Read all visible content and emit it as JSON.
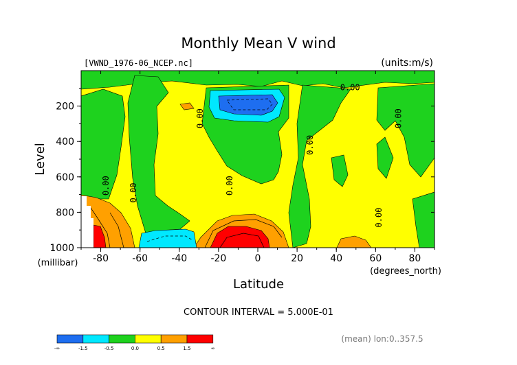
{
  "chart_data": {
    "type": "heatmap",
    "title": "Monthly Mean V wind",
    "file_label": "[VWND_1976-06_NCEP.nc]",
    "units_label": "(units:m/s)",
    "xlabel": "Latitude",
    "x_units": "(degrees_north)",
    "ylabel": "Level",
    "y_units": "(millibar)",
    "xlim": [
      -90,
      90
    ],
    "ylim": [
      1000,
      0
    ],
    "x_ticks": [
      -80,
      -60,
      -40,
      -20,
      0,
      20,
      40,
      60,
      80
    ],
    "y_ticks": [
      200,
      400,
      600,
      800,
      1000
    ],
    "contour_labels": [
      "0.00"
    ],
    "contour_interval_text": "CONTOUR INTERVAL = 5.000E-01",
    "footer_text": "(mean) lon:0..357.5",
    "colorbar": {
      "colors": [
        "#1e6ef0",
        "#00e8ff",
        "#1ed21e",
        "#ffff00",
        "#ffa000",
        "#ff0000"
      ],
      "tick_labels": [
        "-∞",
        "-1.5",
        "-0.5",
        "0.0",
        "0.5",
        "1.5",
        "∞"
      ]
    },
    "regions": [
      {
        "level": "ne_blue",
        "lat_range": [
          -26,
          5
        ],
        "p_range": [
          120,
          260
        ],
        "value_min": -1.5
      },
      {
        "level": "ne_cyan",
        "lat_range": [
          -62,
          -28
        ],
        "p_range": [
          900,
          1000
        ],
        "value_range": [
          -1.5,
          -0.5
        ]
      },
      {
        "level": "pos_red",
        "lat_range": [
          -22,
          5
        ],
        "p_range": [
          880,
          1000
        ],
        "value_min": 1.5
      },
      {
        "level": "pos_red",
        "lat_range": [
          -90,
          -82
        ],
        "p_range": [
          820,
          1000
        ],
        "value_min": 1.5
      },
      {
        "level": "pos_orange",
        "lat_range": [
          -90,
          -64
        ],
        "p_range": [
          620,
          1000
        ],
        "value_range": [
          0.5,
          1.5
        ]
      },
      {
        "level": "pos_orange",
        "lat_range": [
          -30,
          15
        ],
        "p_range": [
          780,
          1000
        ],
        "value_range": [
          0.5,
          1.5
        ]
      },
      {
        "level": "pos_orange",
        "lat_range": [
          40,
          58
        ],
        "p_range": [
          950,
          1000
        ],
        "value_range": [
          0.5,
          1.5
        ]
      }
    ]
  }
}
